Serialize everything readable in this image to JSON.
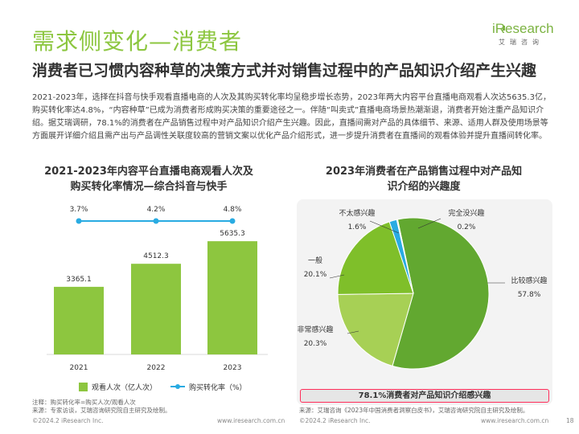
{
  "header": {
    "title": "需求侧变化—消费者",
    "subtitle": "消费者已习惯内容种草的决策方式并对销售过程中的产品知识介绍产生兴趣",
    "logo_main": "iResearch",
    "logo_sub": "艾瑞咨询"
  },
  "paragraph": "2021-2023年，选择在抖音与快手观看直播电商的人次及其购买转化率均呈稳步增长态势，2023年两大内容平台直播电商观看人次达5635.3亿，购买转化率达4.8%，“内容种草”已成为消费者形成购买决策的重要途径之一。伴随“叫卖式”直播电商场景热潮渐退，消费者开始注重产品知识介绍。据艾瑞调研，78.1%的消费者在产品销售过程中对产品知识介绍产生兴趣。因此，直播间需对产品的具体细节、来源、适用人群及使用场景等方面展开详细介绍且需产出与产品调性关联度较高的营销文案以优化产品介绍形式，进一步提升消费者在直播间的观看体验并提升直播间转化率。",
  "left_chart": {
    "title_line1": "2021-2023年内容平台直播电商观看人次及",
    "title_line2": "购买转化率情况—综合抖音与快手",
    "note1": "注释：购买转化率=购买人次/观看人次",
    "note2": "来源：专家访谈，艾瑞咨询研究院自主研究及绘制。"
  },
  "right_chart": {
    "title_line1": "2023年消费者在产品销售过程中对产品知",
    "title_line2": "识介绍的兴趣度",
    "highlight": "78.1%消费者对产品知识介绍感兴趣",
    "source": "来源：艾瑞咨询《2023年中国消费者洞察白皮书》，艾瑞咨询研究院自主研究及绘制。"
  },
  "footer": {
    "left_copyright": "©2024.2 iResearch Inc.",
    "left_url": "www.iresearch.com.cn",
    "right_copyright": "©2024.2 iResearch Inc.",
    "right_url": "www.iresearch.com.cn",
    "page": "18"
  },
  "colors": {
    "brand_green": "#8cc63f",
    "bar_green": "#8dc63f",
    "line_blue": "#29abe2",
    "pie_dark_green": "#62a830",
    "pie_light_green": "#a7d055",
    "pie_mid_green": "#7fbf2a",
    "pie_blue": "#29abe2",
    "highlight_red": "#ff2d5a"
  },
  "chart_data": [
    {
      "type": "bar",
      "categories": [
        "2021",
        "2022",
        "2023"
      ],
      "series": [
        {
          "name": "观看人次（亿人次）",
          "values": [
            3365.1,
            4512.3,
            5635.3
          ],
          "labels": [
            "3365.1",
            "4512.3",
            "5635.3"
          ]
        },
        {
          "name": "购买转化率（%）",
          "values": [
            3.7,
            4.2,
            4.8
          ],
          "labels": [
            "3.7%",
            "4.2%",
            "4.8%"
          ]
        }
      ],
      "legend": "bottom",
      "grid": false
    },
    {
      "type": "pie",
      "slices": [
        {
          "label": "比较感兴趣",
          "value": 57.8,
          "text": "57.8%"
        },
        {
          "label": "非常感兴趣",
          "value": 20.3,
          "text": "20.3%"
        },
        {
          "label": "一般",
          "value": 20.1,
          "text": "20.1%"
        },
        {
          "label": "不太感兴趣",
          "value": 1.6,
          "text": "1.6%"
        },
        {
          "label": "完全没兴趣",
          "value": 0.2,
          "text": "0.2%"
        }
      ]
    }
  ]
}
